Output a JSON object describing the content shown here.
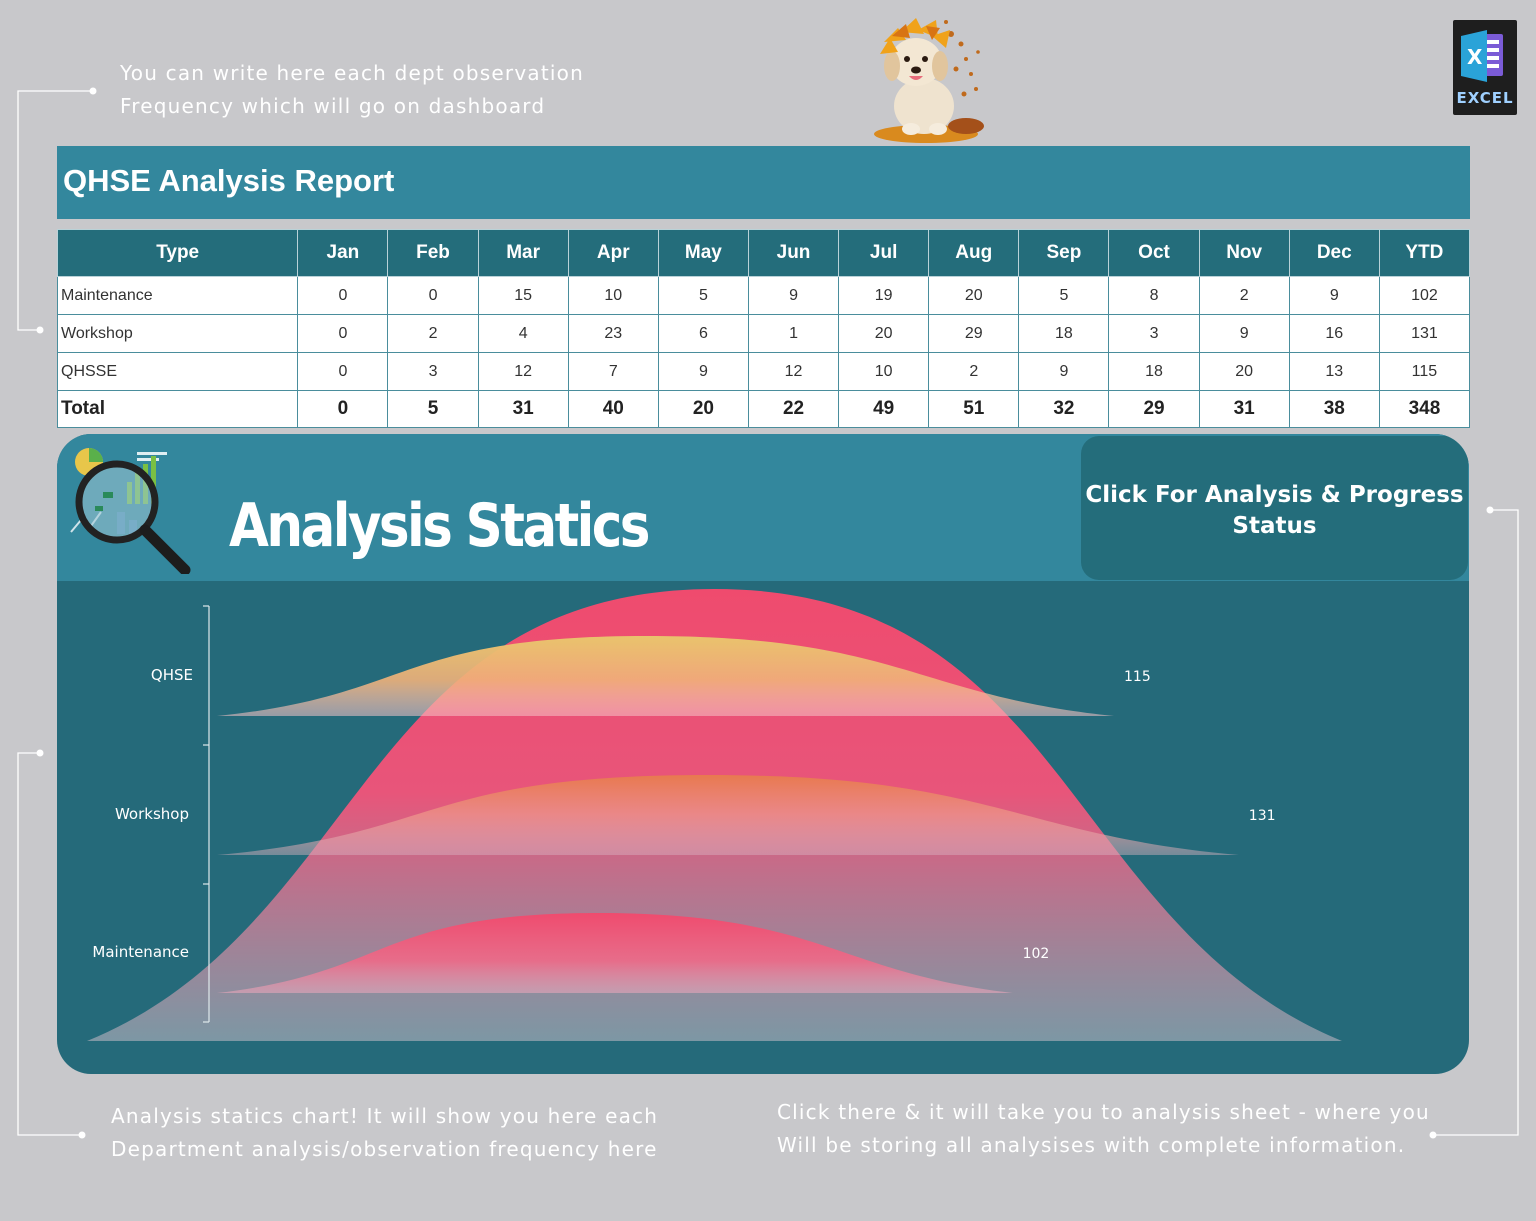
{
  "notes": {
    "top": [
      "You can write here each dept observation",
      "Frequency which will go on dashboard"
    ],
    "bottom_left": [
      "Analysis statics chart! It will show you here each",
      "Department analysis/observation frequency here"
    ],
    "bottom_right": [
      "Click there & it will take you to analysis sheet - where you",
      "Will be storing all analysises with complete information."
    ]
  },
  "logo": {
    "label": "EXCEL",
    "glyph": "X"
  },
  "report": {
    "title": "QHSE Analysis Report",
    "columns": [
      "Type",
      "Jan",
      "Feb",
      "Mar",
      "Apr",
      "May",
      "Jun",
      "Jul",
      "Aug",
      "Sep",
      "Oct",
      "Nov",
      "Dec",
      "YTD"
    ],
    "rows": [
      {
        "type": "Maintenance",
        "values": [
          "0",
          "0",
          "15",
          "10",
          "5",
          "9",
          "19",
          "20",
          "5",
          "8",
          "2",
          "9",
          "102"
        ]
      },
      {
        "type": "Workshop",
        "values": [
          "0",
          "2",
          "4",
          "23",
          "6",
          "1",
          "20",
          "29",
          "18",
          "3",
          "9",
          "16",
          "131"
        ]
      },
      {
        "type": "QHSSE",
        "values": [
          "0",
          "3",
          "12",
          "7",
          "9",
          "12",
          "10",
          "2",
          "9",
          "18",
          "20",
          "13",
          "115"
        ]
      }
    ],
    "total": {
      "label": "Total",
      "values": [
        "0",
        "5",
        "31",
        "40",
        "20",
        "22",
        "49",
        "51",
        "32",
        "29",
        "31",
        "38",
        "348"
      ]
    }
  },
  "dashboard": {
    "title": "Analysis Statics",
    "button_label": "Click For Analysis & Progress Status"
  },
  "chart_data": {
    "type": "area",
    "categories": [
      "QHSE",
      "Workshop",
      "Maintenance"
    ],
    "values": [
      115,
      131,
      102
    ],
    "total": 348,
    "colors": {
      "QHSE": "#e9c36c",
      "Workshop": "#e8794f",
      "Maintenance": "#ef4b6e",
      "Total": "#ef4b6e"
    }
  }
}
